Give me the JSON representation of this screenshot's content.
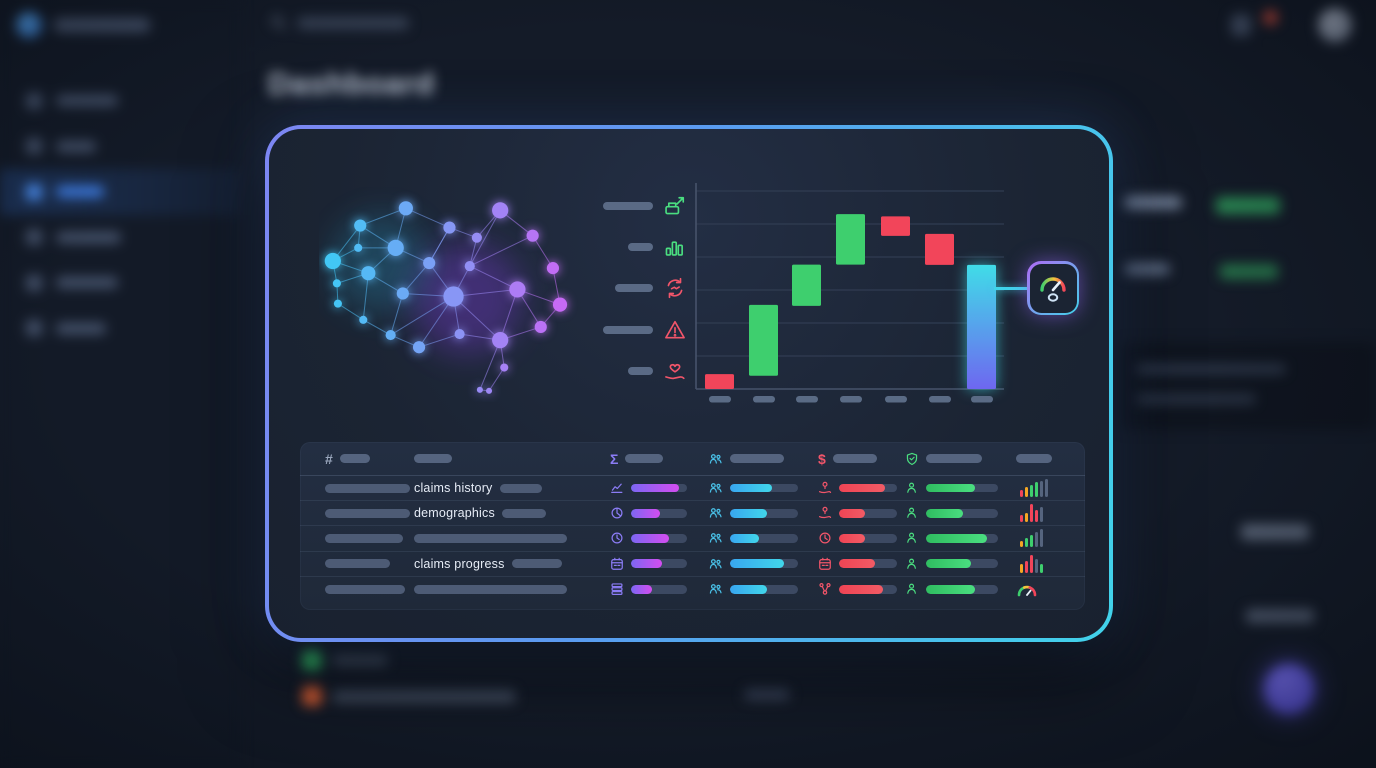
{
  "page": {
    "title": "Dashboard"
  },
  "sidebar": {
    "items": [
      {
        "label_w": 62,
        "active": false
      },
      {
        "label_w": 40,
        "active": false
      },
      {
        "label_w": 48,
        "active": true
      },
      {
        "label_w": 65,
        "active": false
      },
      {
        "label_w": 62,
        "active": false
      },
      {
        "label_w": 50,
        "active": false
      }
    ]
  },
  "topbar": {
    "notification_color": "#c4483a"
  },
  "colors": {
    "green": "#3ecf6e",
    "red": "#f2455a",
    "orange": "#f5a623",
    "gray_bar": "#55647e",
    "purple_icon": "#8b7cf5",
    "blue_icon": "#4ac3ea",
    "red_icon": "#f2556a",
    "green_icon": "#4ade80",
    "modal_border_start": "#7d86f3",
    "modal_border_end": "#41d3ea",
    "waterfall_gradient_top": "#40dce8",
    "waterfall_gradient_bottom": "#6e67f0"
  },
  "modal": {
    "legend": {
      "rows": [
        {
          "dash_w": 50,
          "icon": "export-icon",
          "color": "#4ade80"
        },
        {
          "dash_w": 25,
          "icon": "bar-chart-icon",
          "color": "#4ade80"
        },
        {
          "dash_w": 38,
          "icon": "sync-icon",
          "color": "#f2556a"
        },
        {
          "dash_w": 50,
          "icon": "warning-icon",
          "color": "#f2556a"
        },
        {
          "dash_w": 25,
          "icon": "care-icon",
          "color": "#f2556a"
        }
      ]
    },
    "gauge_arc_colors": [
      "#3ecf6e",
      "#f5c33b",
      "#f2455a"
    ],
    "table": {
      "headers": [
        {
          "symbol": "#",
          "color": "#9aa7bd",
          "pill_w": 30
        },
        {
          "pill_w": 38
        },
        {
          "symbol": "Σ",
          "color": "#8b7cf5",
          "pill_w": 38
        },
        {
          "icon": "people-icon",
          "color": "#4ac3ea",
          "pill_w": 54
        },
        {
          "symbol": "$",
          "color": "#f2556a",
          "pill_w": 44
        },
        {
          "icon": "shield-icon",
          "color": "#4ade80",
          "pill_w": 56
        },
        {
          "pill_w": 36
        }
      ],
      "rows": [
        {
          "id_pill_w": 90,
          "label": "claims history",
          "label_pill_w": 42,
          "sum_icon": "line-chart-icon",
          "sum": 0.85,
          "team": 0.62,
          "cost_icon": "pin-hand-icon",
          "cost": 0.8,
          "quality": 0.68,
          "trend": [
            {
              "h": 0.28,
              "c": "red"
            },
            {
              "h": 0.45,
              "c": "orange"
            },
            {
              "h": 0.6,
              "c": "green"
            },
            {
              "h": 0.78,
              "c": "green"
            },
            {
              "h": 0.9,
              "c": "gray"
            },
            {
              "h": 1.0,
              "c": "gray"
            }
          ]
        },
        {
          "id_pill_w": 90,
          "label": "demographics",
          "label_pill_w": 44,
          "sum_icon": "pie-icon",
          "sum": 0.52,
          "team": 0.55,
          "cost_icon": "pin-hand-icon",
          "cost": 0.45,
          "quality": 0.52,
          "trend": [
            {
              "h": 0.3,
              "c": "red"
            },
            {
              "h": 0.45,
              "c": "orange"
            },
            {
              "h": 1.0,
              "c": "red"
            },
            {
              "h": 0.65,
              "c": "red"
            },
            {
              "h": 0.8,
              "c": "gray"
            }
          ]
        },
        {
          "id_pill_w": 78,
          "label": null,
          "label_pill_w": 153,
          "sum_icon": "clock-icon",
          "sum": 0.68,
          "team": 0.42,
          "cost_icon": "clock-icon",
          "cost": 0.45,
          "quality": 0.85,
          "trend": [
            {
              "h": 0.25,
              "c": "orange"
            },
            {
              "h": 0.45,
              "c": "green"
            },
            {
              "h": 0.62,
              "c": "green"
            },
            {
              "h": 0.8,
              "c": "gray"
            },
            {
              "h": 1.0,
              "c": "gray"
            }
          ]
        },
        {
          "id_pill_w": 65,
          "label": "claims progress",
          "label_pill_w": 50,
          "sum_icon": "calendar-icon",
          "sum": 0.55,
          "team": 0.8,
          "cost_icon": "calendar-icon",
          "cost": 0.62,
          "quality": 0.62,
          "trend": [
            {
              "h": 0.4,
              "c": "orange"
            },
            {
              "h": 0.6,
              "c": "red"
            },
            {
              "h": 1.0,
              "c": "red"
            },
            {
              "h": 0.7,
              "c": "gray"
            },
            {
              "h": 0.35,
              "c": "green"
            }
          ]
        },
        {
          "id_pill_w": 80,
          "label": null,
          "label_pill_w": 153,
          "sum_icon": "rows-icon",
          "sum": 0.38,
          "team": 0.55,
          "cost_icon": "branch-icon",
          "cost": 0.75,
          "quality": 0.68,
          "trend": "gauge"
        }
      ]
    }
  },
  "chart_data": [
    {
      "type": "bar",
      "subtype": "waterfall",
      "title": "",
      "xlabel": "",
      "ylabel": "",
      "x_tick_labels": [
        "",
        "",
        "",
        "",
        "",
        "",
        ""
      ],
      "ylim": [
        0,
        6.4
      ],
      "gridlines": 6,
      "bars": [
        {
          "from": 0.0,
          "to": 0.45,
          "color": "red"
        },
        {
          "from": 0.4,
          "to": 2.55,
          "color": "green"
        },
        {
          "from": 2.52,
          "to": 3.77,
          "color": "green"
        },
        {
          "from": 3.77,
          "to": 5.3,
          "color": "green"
        },
        {
          "from": 4.64,
          "to": 5.23,
          "color": "red"
        },
        {
          "from": 3.76,
          "to": 4.7,
          "color": "red"
        },
        {
          "from": 0.0,
          "to": 3.76,
          "color": "gradient"
        }
      ],
      "legend_position": "left",
      "annotation": "gauge badge connected to final bar"
    }
  ]
}
